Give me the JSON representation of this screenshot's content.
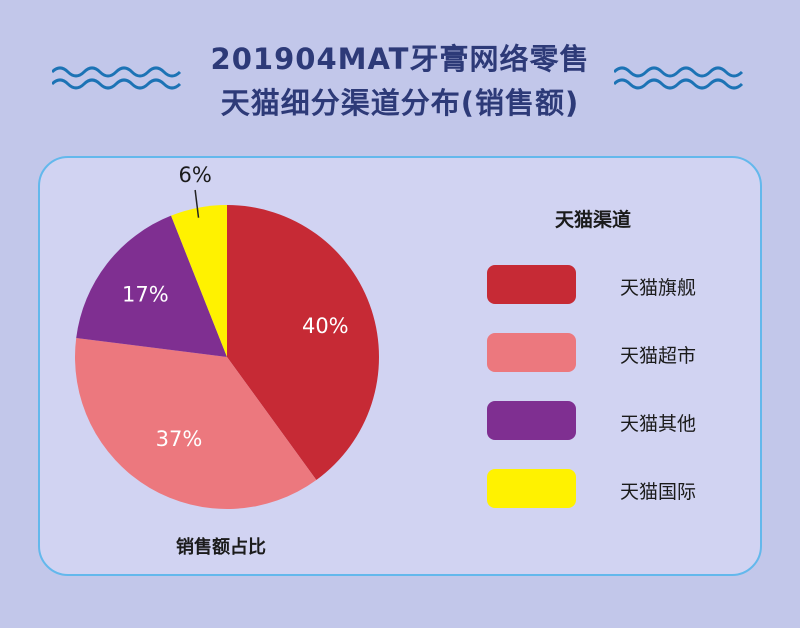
{
  "header": {
    "title_line1": "201904MAT牙膏网络零售",
    "title_line2": "天猫细分渠道分布(销售额)"
  },
  "chart_data": {
    "type": "pie",
    "categories": [
      "天猫旗舰",
      "天猫超市",
      "天猫其他",
      "天猫国际"
    ],
    "values": [
      40,
      37,
      17,
      6
    ],
    "value_labels": [
      "40%",
      "37%",
      "17%",
      "6%"
    ],
    "colors": [
      "#c62a35",
      "#ec787e",
      "#7f2f91",
      "#fff200"
    ],
    "legend_title": "天猫渠道",
    "legend_position": "right",
    "caption": "销售额占比"
  }
}
